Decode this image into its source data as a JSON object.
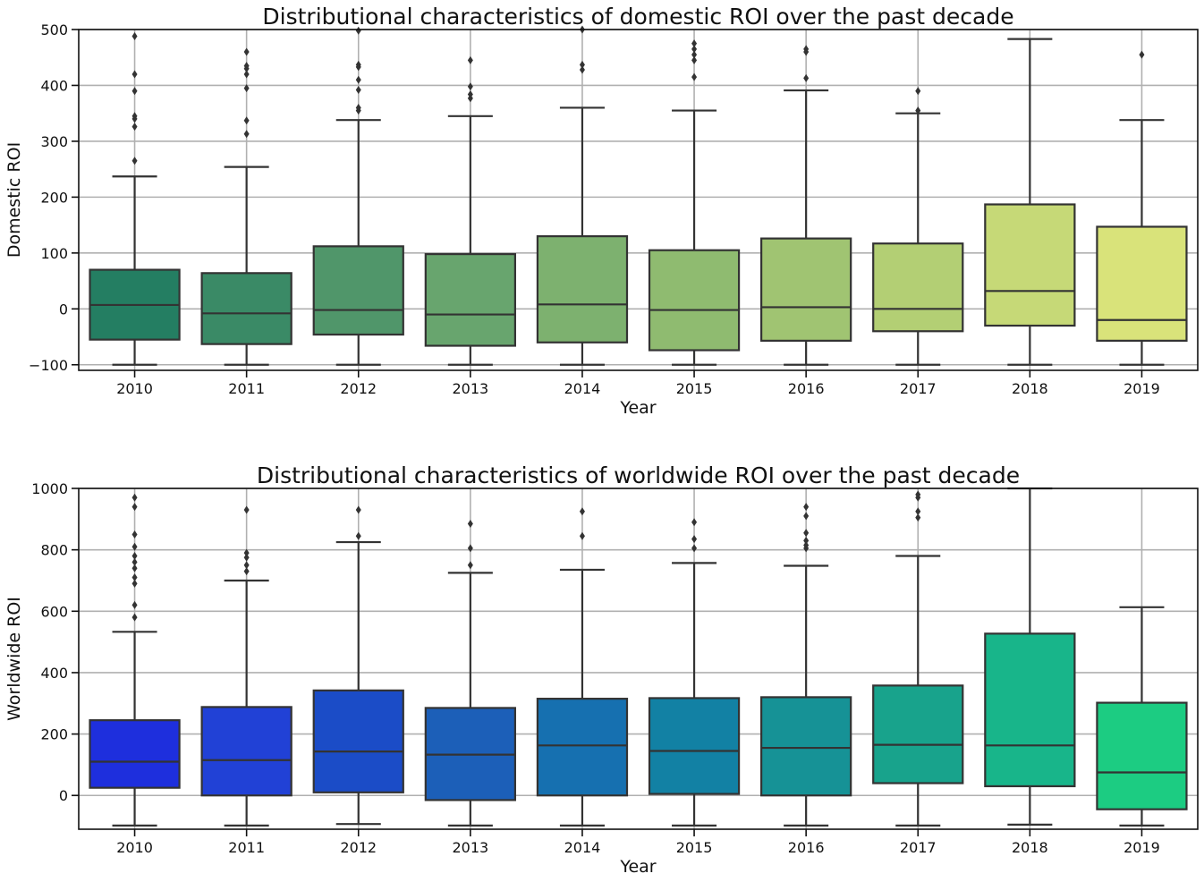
{
  "chart_data": [
    {
      "type": "box",
      "title": "Distributional characteristics of domestic ROI over the past decade",
      "xlabel": "Year",
      "ylabel": "Domestic ROI",
      "ylim": [
        -110,
        500
      ],
      "yticks": [
        -100,
        0,
        100,
        200,
        300,
        400,
        500
      ],
      "ytick_labels": [
        "−100",
        "0",
        "100",
        "200",
        "300",
        "400",
        "500"
      ],
      "grid": true,
      "categories": [
        "2010",
        "2011",
        "2012",
        "2013",
        "2014",
        "2015",
        "2016",
        "2017",
        "2018",
        "2019"
      ],
      "colors": [
        "#247e62",
        "#3a8a66",
        "#50966a",
        "#68a56e",
        "#7db16f",
        "#8fbb70",
        "#a0c472",
        "#b3cf74",
        "#c6d977",
        "#d9e37a"
      ],
      "boxes": [
        {
          "q1": -55,
          "median": 7,
          "q3": 70,
          "whisker_low": -100,
          "whisker_high": 237,
          "outliers": [
            265,
            326,
            340,
            345,
            390,
            420,
            488
          ]
        },
        {
          "q1": -63,
          "median": -8,
          "q3": 64,
          "whisker_low": -100,
          "whisker_high": 254,
          "outliers": [
            313,
            337,
            395,
            420,
            430,
            435,
            460
          ]
        },
        {
          "q1": -46,
          "median": -2,
          "q3": 112,
          "whisker_low": -100,
          "whisker_high": 338,
          "outliers": [
            355,
            360,
            392,
            410,
            433,
            437,
            498
          ]
        },
        {
          "q1": -66,
          "median": -10,
          "q3": 98,
          "whisker_low": -100,
          "whisker_high": 345,
          "outliers": [
            377,
            384,
            398,
            445
          ]
        },
        {
          "q1": -60,
          "median": 8,
          "q3": 130,
          "whisker_low": -100,
          "whisker_high": 360,
          "outliers": [
            428,
            437,
            500
          ]
        },
        {
          "q1": -74,
          "median": -2,
          "q3": 105,
          "whisker_low": -100,
          "whisker_high": 355,
          "outliers": [
            415,
            445,
            455,
            465,
            475
          ]
        },
        {
          "q1": -57,
          "median": 3,
          "q3": 126,
          "whisker_low": -100,
          "whisker_high": 391,
          "outliers": [
            413,
            460,
            465
          ]
        },
        {
          "q1": -40,
          "median": 0,
          "q3": 117,
          "whisker_low": -100,
          "whisker_high": 350,
          "outliers": [
            355,
            390
          ]
        },
        {
          "q1": -30,
          "median": 32,
          "q3": 187,
          "whisker_low": -100,
          "whisker_high": 483,
          "outliers": []
        },
        {
          "q1": -57,
          "median": -20,
          "q3": 147,
          "whisker_low": -100,
          "whisker_high": 338,
          "outliers": [
            455
          ]
        }
      ]
    },
    {
      "type": "box",
      "title": "Distributional characteristics of worldwide ROI over the past decade",
      "xlabel": "Year",
      "ylabel": "Worldwide ROI",
      "ylim": [
        -110,
        1000
      ],
      "yticks": [
        0,
        200,
        400,
        600,
        800,
        1000
      ],
      "ytick_labels": [
        "0",
        "200",
        "400",
        "600",
        "800",
        "1000"
      ],
      "grid": true,
      "categories": [
        "2010",
        "2011",
        "2012",
        "2013",
        "2014",
        "2015",
        "2016",
        "2017",
        "2018",
        "2019"
      ],
      "colors": [
        "#1e2fdd",
        "#2141d6",
        "#1b4cc7",
        "#1c5fb8",
        "#1670b0",
        "#1281a4",
        "#169296",
        "#18a38c",
        "#18b58a",
        "#1ccc82"
      ],
      "boxes": [
        {
          "q1": 25,
          "median": 110,
          "q3": 245,
          "whisker_low": -98,
          "whisker_high": 533,
          "outliers": [
            580,
            620,
            690,
            710,
            740,
            760,
            780,
            810,
            850,
            940,
            970
          ]
        },
        {
          "q1": 0,
          "median": 115,
          "q3": 288,
          "whisker_low": -98,
          "whisker_high": 700,
          "outliers": [
            730,
            750,
            775,
            790,
            930
          ]
        },
        {
          "q1": 10,
          "median": 143,
          "q3": 342,
          "whisker_low": -93,
          "whisker_high": 825,
          "outliers": [
            845,
            930
          ]
        },
        {
          "q1": -15,
          "median": 133,
          "q3": 285,
          "whisker_low": -98,
          "whisker_high": 725,
          "outliers": [
            750,
            805,
            885
          ]
        },
        {
          "q1": 0,
          "median": 163,
          "q3": 315,
          "whisker_low": -98,
          "whisker_high": 735,
          "outliers": [
            845,
            925
          ]
        },
        {
          "q1": 5,
          "median": 145,
          "q3": 317,
          "whisker_low": -98,
          "whisker_high": 757,
          "outliers": [
            805,
            835,
            890
          ]
        },
        {
          "q1": 0,
          "median": 155,
          "q3": 320,
          "whisker_low": -98,
          "whisker_high": 748,
          "outliers": [
            805,
            815,
            830,
            855,
            910,
            940
          ]
        },
        {
          "q1": 40,
          "median": 165,
          "q3": 358,
          "whisker_low": -98,
          "whisker_high": 780,
          "outliers": [
            905,
            925,
            970,
            980
          ]
        },
        {
          "q1": 30,
          "median": 163,
          "q3": 527,
          "whisker_low": -95,
          "whisker_high": 1000,
          "outliers": []
        },
        {
          "q1": -45,
          "median": 75,
          "q3": 302,
          "whisker_low": -98,
          "whisker_high": 613,
          "outliers": []
        }
      ]
    }
  ]
}
